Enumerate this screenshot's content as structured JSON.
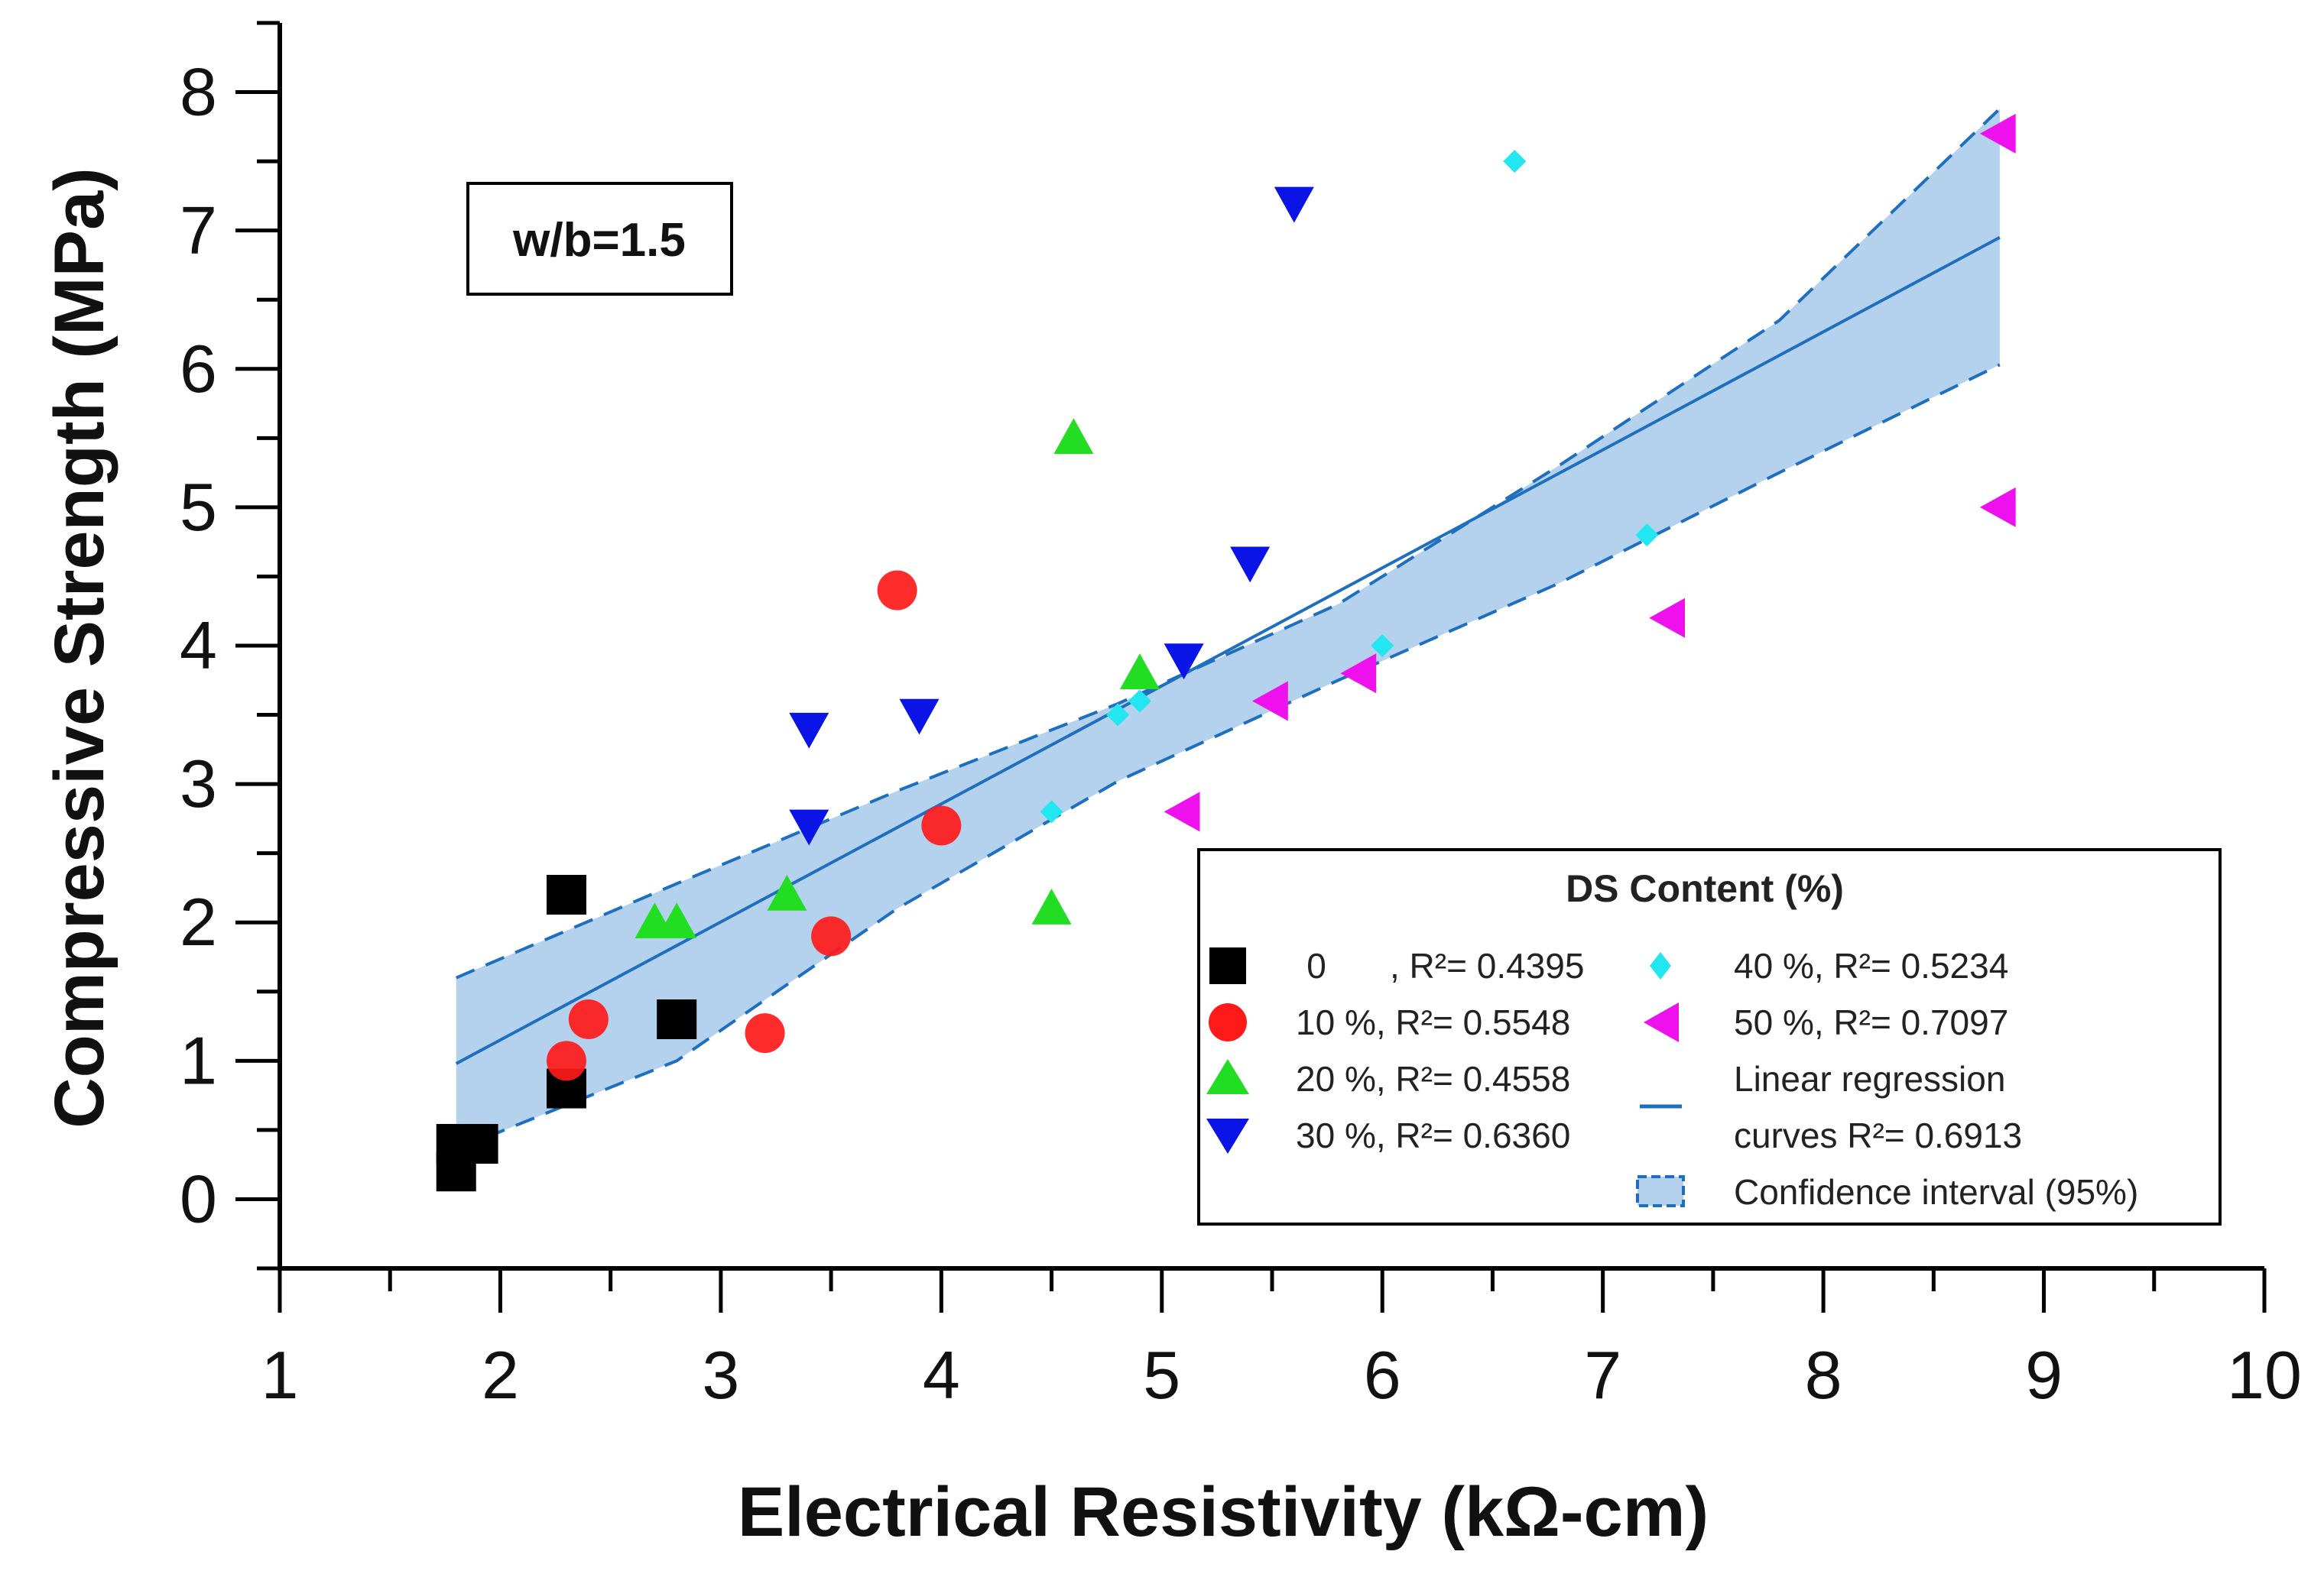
{
  "chart_data": {
    "type": "scatter",
    "xlabel": "Electrical Resistivity (kΩ-cm)",
    "ylabel": "Compressive Strength (MPa)",
    "xlim": [
      1,
      10
    ],
    "ylim": [
      -0.5,
      8.5
    ],
    "xticks": [
      1,
      2,
      3,
      4,
      5,
      6,
      7,
      8,
      9,
      10
    ],
    "yticks": [
      0,
      1,
      2,
      3,
      4,
      5,
      6,
      7,
      8
    ],
    "annotation": "w/b=1.5",
    "legend": {
      "title": "DS Content (%)",
      "position": "bottom-right",
      "entries": [
        {
          "key": "0",
          "label_prefix": "0",
          "label_suffix": ", R²= 0.4395"
        },
        {
          "key": "10",
          "label": "10 %, R²= 0.5548"
        },
        {
          "key": "20",
          "label": "20 %, R²= 0.4558"
        },
        {
          "key": "30",
          "label": "30 %, R²= 0.6360"
        },
        {
          "key": "40",
          "label": "40 %, R²= 0.5234"
        },
        {
          "key": "50",
          "label": "50 %, R²= 0.7097"
        },
        {
          "key": "fit",
          "label_line1": "Linear regression",
          "label_line2": "curves R²= 0.6913"
        },
        {
          "key": "ci",
          "label": "Confidence interval (95%)"
        }
      ]
    },
    "series": [
      {
        "name": "0 %",
        "marker": "square",
        "color": "#000000",
        "points": [
          [
            1.8,
            0.2
          ],
          [
            1.8,
            0.4
          ],
          [
            1.9,
            0.4
          ],
          [
            2.3,
            0.8
          ],
          [
            2.3,
            2.2
          ],
          [
            2.8,
            1.3
          ]
        ]
      },
      {
        "name": "10 %",
        "marker": "circle",
        "color": "#ff1a1a",
        "points": [
          [
            2.3,
            1.0
          ],
          [
            2.4,
            1.3
          ],
          [
            3.2,
            1.2
          ],
          [
            3.5,
            1.9
          ],
          [
            3.8,
            4.4
          ],
          [
            4.0,
            2.7
          ]
        ]
      },
      {
        "name": "20 %",
        "marker": "triangle-up",
        "color": "#22dd22",
        "points": [
          [
            2.7,
            2.0
          ],
          [
            2.8,
            2.0
          ],
          [
            3.3,
            2.2
          ],
          [
            4.5,
            2.1
          ],
          [
            4.6,
            5.5
          ],
          [
            4.9,
            3.8
          ]
        ]
      },
      {
        "name": "30 %",
        "marker": "triangle-down",
        "color": "#0a14e6",
        "points": [
          [
            3.4,
            2.7
          ],
          [
            3.4,
            3.4
          ],
          [
            3.9,
            3.5
          ],
          [
            5.1,
            3.9
          ],
          [
            5.4,
            4.6
          ],
          [
            5.6,
            7.2
          ]
        ]
      },
      {
        "name": "40 %",
        "marker": "diamond",
        "color": "#22e6f0",
        "points": [
          [
            4.5,
            2.8
          ],
          [
            4.8,
            3.5
          ],
          [
            4.9,
            3.6
          ],
          [
            6.0,
            4.0
          ],
          [
            6.6,
            7.5
          ],
          [
            7.2,
            4.8
          ]
        ]
      },
      {
        "name": "50 %",
        "marker": "triangle-left",
        "color": "#ee11ee",
        "points": [
          [
            5.1,
            2.8
          ],
          [
            5.5,
            3.6
          ],
          [
            5.9,
            3.8
          ],
          [
            7.3,
            4.2
          ],
          [
            8.8,
            5.0
          ],
          [
            8.8,
            7.7
          ]
        ]
      }
    ],
    "regression": {
      "x_start": 1.8,
      "x_end": 8.8,
      "fit": [
        [
          1.8,
          0.98
        ],
        [
          8.8,
          6.95
        ]
      ],
      "ci_upper": [
        [
          1.8,
          1.6
        ],
        [
          2.8,
          2.28
        ],
        [
          3.8,
          2.95
        ],
        [
          4.8,
          3.58
        ],
        [
          5.8,
          4.3
        ],
        [
          6.8,
          5.3
        ],
        [
          7.8,
          6.35
        ],
        [
          8.8,
          7.88
        ]
      ],
      "ci_lower": [
        [
          1.8,
          0.36
        ],
        [
          2.8,
          1.0
        ],
        [
          3.8,
          2.1
        ],
        [
          4.8,
          3.02
        ],
        [
          5.8,
          3.75
        ],
        [
          6.8,
          4.45
        ],
        [
          7.8,
          5.25
        ],
        [
          8.8,
          6.03
        ]
      ],
      "line_color": "#1f6fc0",
      "band_color": "#b4d2ee"
    }
  }
}
